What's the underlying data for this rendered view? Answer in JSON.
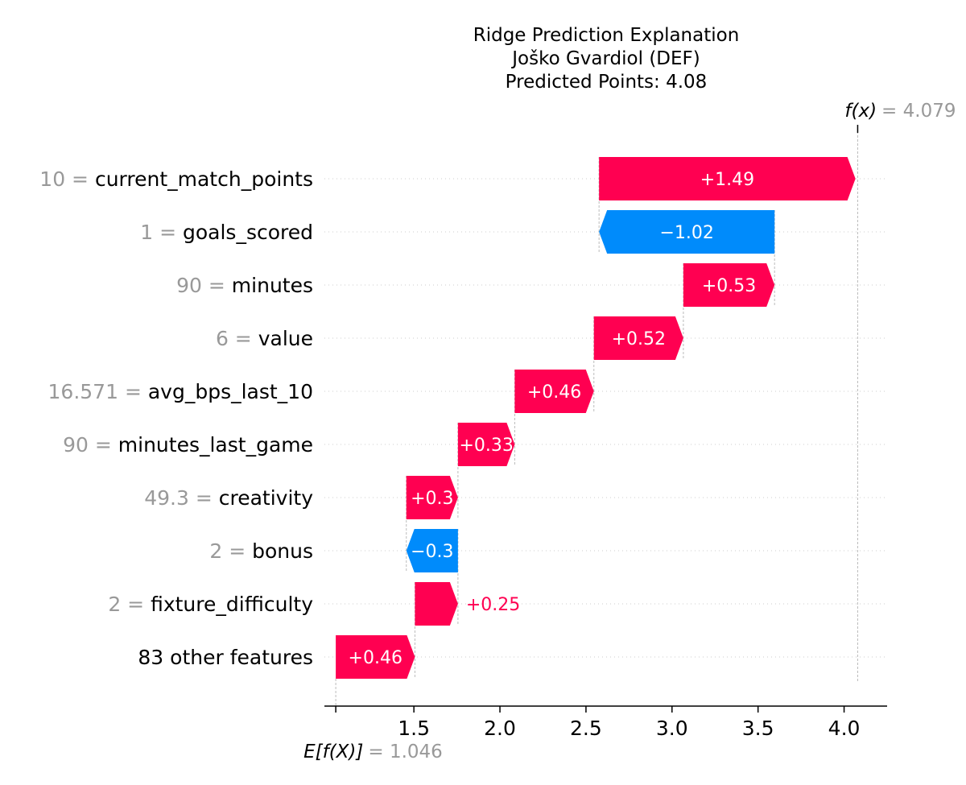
{
  "chart_data": {
    "type": "waterfall",
    "title_lines": [
      "Ridge Prediction Explanation",
      "Joško Gvardiol (DEF)",
      "Predicted Points: 4.08"
    ],
    "base_value": 1.046,
    "base_label": "E[f(X)]",
    "base_value_text": "= 1.046",
    "output_value": 4.079,
    "output_label": "f(x)",
    "output_value_text": "= 4.079",
    "xlim": [
      0.98,
      4.25
    ],
    "xticks": [
      1.5,
      2.0,
      2.5,
      3.0,
      3.5,
      4.0
    ],
    "xtick_labels": [
      "1.5",
      "2.0",
      "2.5",
      "3.0",
      "3.5",
      "4.0"
    ],
    "features": [
      {
        "value": "10",
        "name": "current_match_points",
        "contribution": 1.49,
        "label": "+1.49",
        "label_outside": false
      },
      {
        "value": "1",
        "name": "goals_scored",
        "contribution": -1.02,
        "label": "−1.02",
        "label_outside": false
      },
      {
        "value": "90",
        "name": "minutes",
        "contribution": 0.53,
        "label": "+0.53",
        "label_outside": false
      },
      {
        "value": "6",
        "name": "value",
        "contribution": 0.52,
        "label": "+0.52",
        "label_outside": false
      },
      {
        "value": "16.571",
        "name": "avg_bps_last_10",
        "contribution": 0.46,
        "label": "+0.46",
        "label_outside": false
      },
      {
        "value": "90",
        "name": "minutes_last_game",
        "contribution": 0.33,
        "label": "+0.33",
        "label_outside": false
      },
      {
        "value": "49.3",
        "name": "creativity",
        "contribution": 0.3,
        "label": "+0.3",
        "label_outside": false
      },
      {
        "value": "2",
        "name": "bonus",
        "contribution": -0.3,
        "label": "−0.3",
        "label_outside": false
      },
      {
        "value": "2",
        "name": "fixture_difficulty",
        "contribution": 0.25,
        "label": "+0.25",
        "label_outside": true
      },
      {
        "value": "",
        "name": "83 other features",
        "contribution": 0.46,
        "label": "+0.46",
        "label_outside": false
      }
    ],
    "colors": {
      "positive": "#ff0051",
      "negative": "#008bfb",
      "feature_value": "#999999"
    }
  }
}
